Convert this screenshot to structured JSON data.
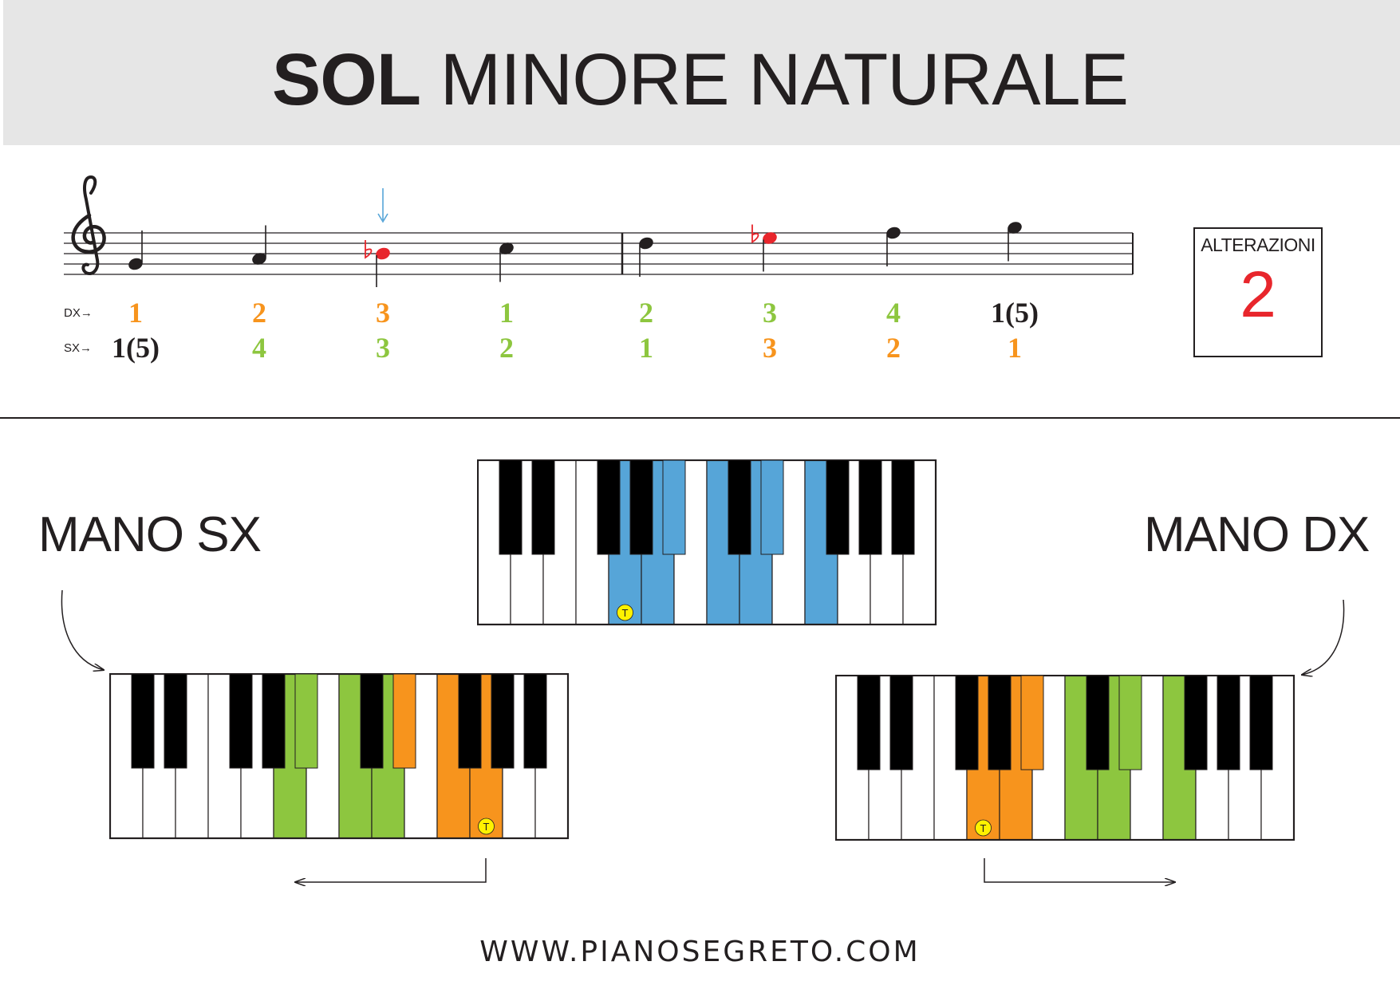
{
  "title": {
    "bold": "SOL",
    "rest": " MINORE NATURALE"
  },
  "staff": {
    "notes": [
      {
        "step": -2,
        "flat": false,
        "color": "#231f20"
      },
      {
        "step": -1,
        "flat": false,
        "color": "#231f20"
      },
      {
        "step": 0,
        "flat": true,
        "color": "#e8262c",
        "marked": true
      },
      {
        "step": 1,
        "flat": false,
        "color": "#231f20"
      },
      {
        "step": 2,
        "flat": false,
        "color": "#231f20"
      },
      {
        "step": 3,
        "flat": true,
        "color": "#e8262c"
      },
      {
        "step": 4,
        "flat": false,
        "color": "#231f20"
      },
      {
        "step": 5,
        "flat": false,
        "color": "#231f20"
      }
    ]
  },
  "fingering": {
    "dx_label": "DX→",
    "sx_label": "SX→",
    "dx": [
      {
        "text": "1",
        "color": "#f7941d"
      },
      {
        "text": "2",
        "color": "#f7941d"
      },
      {
        "text": "3",
        "color": "#f7941d"
      },
      {
        "text": "1",
        "color": "#8dc63f"
      },
      {
        "text": "2",
        "color": "#8dc63f"
      },
      {
        "text": "3",
        "color": "#8dc63f"
      },
      {
        "text": "4",
        "color": "#8dc63f"
      },
      {
        "text": "1(5)",
        "color": "#231f20"
      }
    ],
    "sx": [
      {
        "text": "1(5)",
        "color": "#231f20"
      },
      {
        "text": "4",
        "color": "#8dc63f"
      },
      {
        "text": "3",
        "color": "#8dc63f"
      },
      {
        "text": "2",
        "color": "#8dc63f"
      },
      {
        "text": "1",
        "color": "#8dc63f"
      },
      {
        "text": "3",
        "color": "#f7941d"
      },
      {
        "text": "2",
        "color": "#f7941d"
      },
      {
        "text": "1",
        "color": "#f7941d"
      }
    ]
  },
  "alterazioni": {
    "label": "ALTERAZIONI",
    "value": "2"
  },
  "hands": {
    "left": "MANO SX",
    "right": "MANO DX"
  },
  "tonic_marker": "T",
  "colors": {
    "blue": "#56a5d8",
    "green": "#8dc63f",
    "orange": "#f7941d",
    "tonic": "#fff200",
    "flat_red": "#e8262c",
    "arrow_blue": "#56a5d8"
  },
  "keyboards": {
    "scale": {
      "white": {
        "4": "blue",
        "5": "blue",
        "7": "blue",
        "8": "blue",
        "10": "blue"
      },
      "black": {
        "5": "blue",
        "8": "blue"
      },
      "tonic_white": 4
    },
    "left": {
      "white": {
        "5": "green",
        "7": "green",
        "8": "green",
        "10": "orange",
        "11": "orange"
      },
      "black": {
        "5": "green",
        "8": "orange"
      },
      "tonic_white": 11
    },
    "right": {
      "white": {
        "4": "orange",
        "5": "orange",
        "7": "green",
        "8": "green",
        "10": "green"
      },
      "black": {
        "5": "orange",
        "8": "green"
      },
      "tonic_white": 4
    }
  },
  "footer": "WWW.PIANOSEGRETO.COM"
}
